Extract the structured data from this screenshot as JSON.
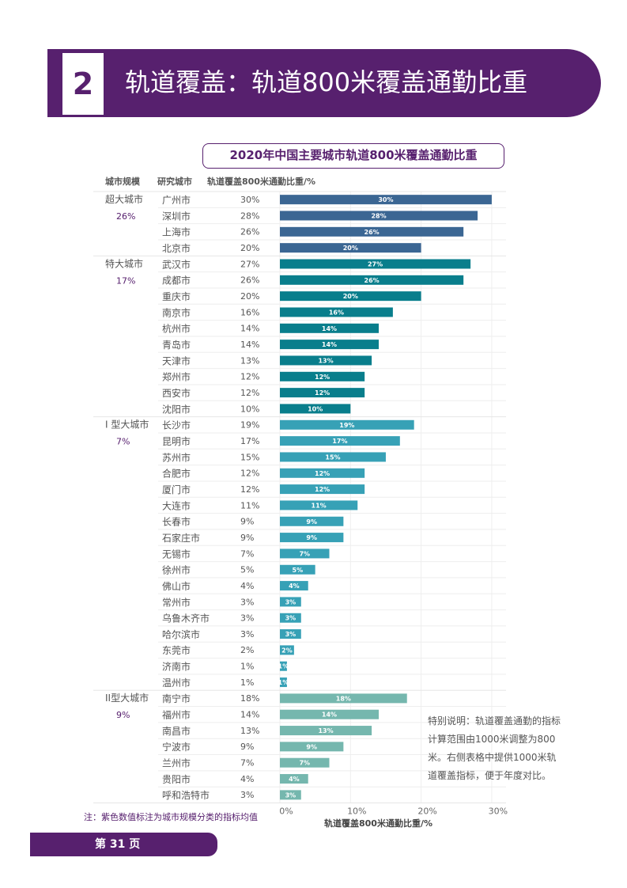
{
  "header": {
    "section_number": "2",
    "title": "轨道覆盖：轨道800米覆盖通勤比重"
  },
  "colors": {
    "brand": "#57206e",
    "super": "#3b6693",
    "mega": "#097e8c",
    "type1": "#37a1b6",
    "type2": "#75b7ae"
  },
  "chart_data": {
    "type": "bar",
    "orientation": "horizontal",
    "title": "2020年中国主要城市轨道800米覆盖通勤比重",
    "column_headers": {
      "scale": "城市规模",
      "city": "研究城市",
      "value": "轨道覆盖800米通勤比重/%"
    },
    "xlabel": "轨道覆盖800米通勤比重/%",
    "xlim": [
      0,
      30
    ],
    "xticks": [
      "0%",
      "10%",
      "20%",
      "30%"
    ],
    "groups": [
      {
        "name": "超大城市",
        "avg": "26%",
        "color": "#3b6693",
        "cities": [
          {
            "name": "广州市",
            "value": 30
          },
          {
            "name": "深圳市",
            "value": 28
          },
          {
            "name": "上海市",
            "value": 26
          },
          {
            "name": "北京市",
            "value": 20
          }
        ]
      },
      {
        "name": "特大城市",
        "avg": "17%",
        "color": "#097e8c",
        "cities": [
          {
            "name": "武汉市",
            "value": 27
          },
          {
            "name": "成都市",
            "value": 26
          },
          {
            "name": "重庆市",
            "value": 20
          },
          {
            "name": "南京市",
            "value": 16
          },
          {
            "name": "杭州市",
            "value": 14
          },
          {
            "name": "青岛市",
            "value": 14
          },
          {
            "name": "天津市",
            "value": 13
          },
          {
            "name": "郑州市",
            "value": 12
          },
          {
            "name": "西安市",
            "value": 12
          },
          {
            "name": "沈阳市",
            "value": 10
          }
        ]
      },
      {
        "name": "I 型大城市",
        "avg": "7%",
        "color": "#37a1b6",
        "cities": [
          {
            "name": "长沙市",
            "value": 19
          },
          {
            "name": "昆明市",
            "value": 17
          },
          {
            "name": "苏州市",
            "value": 15
          },
          {
            "name": "合肥市",
            "value": 12
          },
          {
            "name": "厦门市",
            "value": 12
          },
          {
            "name": "大连市",
            "value": 11
          },
          {
            "name": "长春市",
            "value": 9
          },
          {
            "name": "石家庄市",
            "value": 9
          },
          {
            "name": "无锡市",
            "value": 7
          },
          {
            "name": "徐州市",
            "value": 5
          },
          {
            "name": "佛山市",
            "value": 4
          },
          {
            "name": "常州市",
            "value": 3
          },
          {
            "name": "乌鲁木齐市",
            "value": 3
          },
          {
            "name": "哈尔滨市",
            "value": 3
          },
          {
            "name": "东莞市",
            "value": 2
          },
          {
            "name": "济南市",
            "value": 1
          },
          {
            "name": "温州市",
            "value": 1
          }
        ]
      },
      {
        "name": "II型大城市",
        "avg": "9%",
        "color": "#75b7ae",
        "cities": [
          {
            "name": "南宁市",
            "value": 18
          },
          {
            "name": "福州市",
            "value": 14
          },
          {
            "name": "南昌市",
            "value": 13
          },
          {
            "name": "宁波市",
            "value": 9
          },
          {
            "name": "兰州市",
            "value": 7
          },
          {
            "name": "贵阳市",
            "value": 4
          },
          {
            "name": "呼和浩特市",
            "value": 3
          }
        ]
      }
    ]
  },
  "note": "特别说明：轨道覆盖通勤的指标计算范围由1000米调整为800米。右侧表格中提供1000米轨道覆盖指标，便于年度对比。",
  "footnote": "注：紫色数值标注为城市规模分类的指标均值",
  "footer": {
    "page_label": "第 31 页"
  }
}
